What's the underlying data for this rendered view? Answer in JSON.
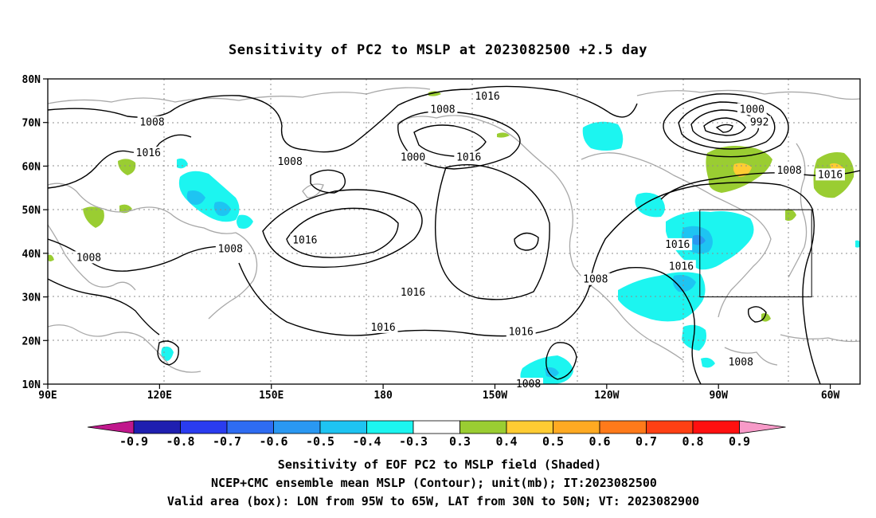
{
  "title": "Sensitivity of PC2 to MSLP at 2023082500 +2.5 day",
  "lon_ticks": [
    "90E",
    "120E",
    "150E",
    "180",
    "150W",
    "120W",
    "90W",
    "60W"
  ],
  "lat_ticks": [
    "80N",
    "70N",
    "60N",
    "50N",
    "40N",
    "30N",
    "20N",
    "10N"
  ],
  "map_extent": {
    "lon_min": 90,
    "lon_max": 308,
    "lat_min": 10,
    "lat_max": 80
  },
  "valid_box": {
    "lon_min": 265,
    "lon_max": 295,
    "lat_min": 30,
    "lat_max": 50
  },
  "contour_labels": [
    {
      "text": "1016",
      "lon": 208,
      "lat": 76
    },
    {
      "text": "1008",
      "lon": 196,
      "lat": 73
    },
    {
      "text": "1000",
      "lon": 279,
      "lat": 73
    },
    {
      "text": "992",
      "lon": 281,
      "lat": 70
    },
    {
      "text": "1008",
      "lon": 118,
      "lat": 70
    },
    {
      "text": "1016",
      "lon": 117,
      "lat": 63
    },
    {
      "text": "1008",
      "lon": 155,
      "lat": 61
    },
    {
      "text": "1000",
      "lon": 188,
      "lat": 62
    },
    {
      "text": "1016",
      "lon": 203,
      "lat": 62
    },
    {
      "text": "1008",
      "lon": 289,
      "lat": 59
    },
    {
      "text": "1016",
      "lon": 300,
      "lat": 58
    },
    {
      "text": "1016",
      "lon": 159,
      "lat": 43
    },
    {
      "text": "1008",
      "lon": 101,
      "lat": 39
    },
    {
      "text": "1008",
      "lon": 139,
      "lat": 41
    },
    {
      "text": "1016",
      "lon": 259,
      "lat": 42
    },
    {
      "text": "1016",
      "lon": 260,
      "lat": 37
    },
    {
      "text": "1008",
      "lon": 237,
      "lat": 34
    },
    {
      "text": "1016",
      "lon": 188,
      "lat": 31
    },
    {
      "text": "1016",
      "lon": 180,
      "lat": 23
    },
    {
      "text": "1016",
      "lon": 217,
      "lat": 22
    },
    {
      "text": "1008",
      "lon": 276,
      "lat": 15
    },
    {
      "text": "1008",
      "lon": 219,
      "lat": 10
    }
  ],
  "colorbar": {
    "labels": [
      "-0.9",
      "-0.8",
      "-0.7",
      "-0.6",
      "-0.5",
      "-0.4",
      "-0.3",
      "0.3",
      "0.4",
      "0.5",
      "0.6",
      "0.7",
      "0.8",
      "0.9"
    ],
    "colors": [
      "#1f1fb0",
      "#2a3cf0",
      "#2e6cf2",
      "#2a98f2",
      "#1ec4f2",
      "#1cf5f0",
      "#ffffff",
      "#9acd32",
      "#ffcc33",
      "#ffaa22",
      "#ff7a1a",
      "#ff4014",
      "#ff1010"
    ],
    "low_end_color": "#c0188c",
    "high_end_color": "#f79ac8"
  },
  "footer": {
    "line1": "Sensitivity of EOF PC2 to MSLP field (Shaded)",
    "line2": "NCEP+CMC ensemble mean MSLP (Contour); unit(mb); IT:2023082500",
    "line3": "Valid area (box): LON from 95W to 65W, LAT from 30N to 50N; VT: 2023082900"
  },
  "colors": {
    "contour": "#000000",
    "coast": "#a8a8a8",
    "grid": "#8c8c8c"
  }
}
